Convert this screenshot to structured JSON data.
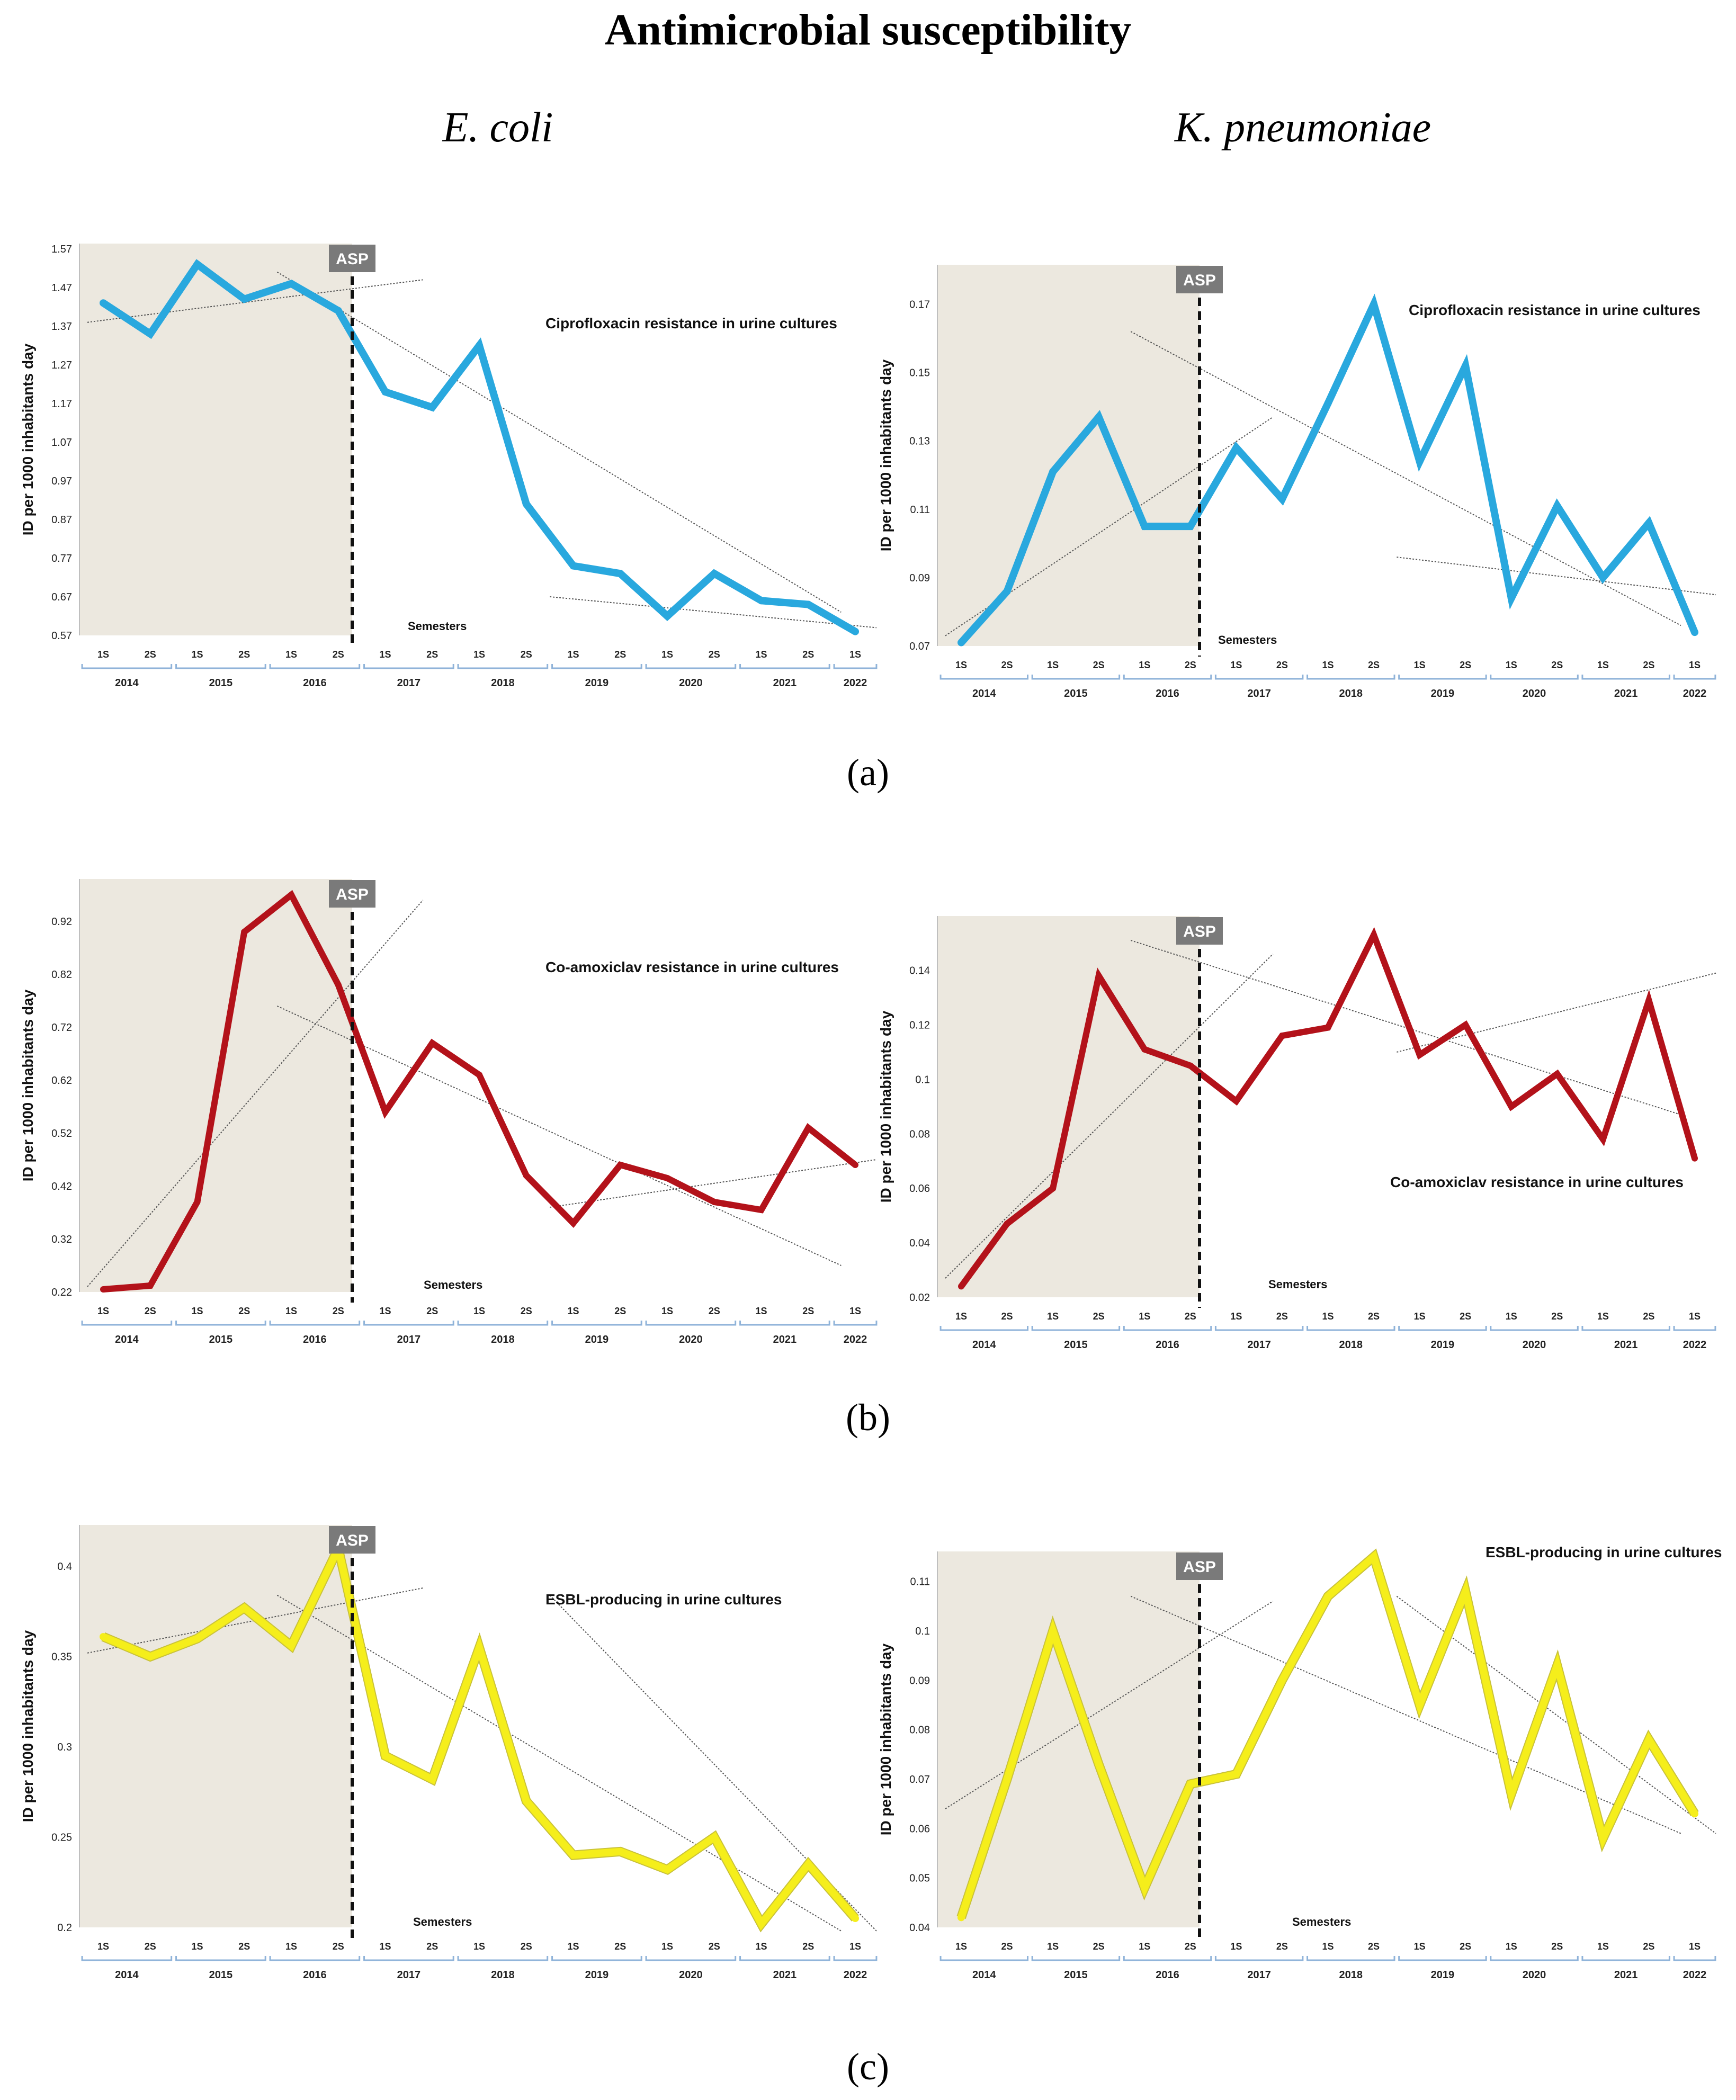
{
  "title": "Antimicrobial susceptibility",
  "columns": {
    "left": "E. coli",
    "right": "K. pneumoniae"
  },
  "panels": [
    "(a)",
    "(b)",
    "(c)"
  ],
  "colors": {
    "blue": "#29a8de",
    "red": "#b3121a",
    "yellow": "#f5ee1b",
    "shade": "#ece8df",
    "asp_box": "#7a7a7a"
  },
  "chart_data": [
    {
      "type": "line",
      "organism": "E. coli",
      "title": "Ciprofloxacin resistance in urine cultures",
      "ylabel": "ID per 1000 inhabitants  day",
      "xlabel": "Semesters",
      "marker_label": "ASP",
      "color": "blue",
      "yticks": [
        "0.57",
        "0.67",
        "0.77",
        "0.87",
        "0.97",
        "1.07",
        "1.17",
        "1.27",
        "1.37",
        "1.47",
        "1.57"
      ],
      "ylim": [
        0.57,
        1.57
      ],
      "x": [
        "1S",
        "2S",
        "1S",
        "2S",
        "1S",
        "2S",
        "1S",
        "2S",
        "1S",
        "2S",
        "1S",
        "2S",
        "1S",
        "2S",
        "1S",
        "2S",
        "1S"
      ],
      "years": [
        "2014",
        "2015",
        "2016",
        "2017",
        "2018",
        "2019",
        "2020",
        "2021",
        "2022"
      ],
      "values": [
        1.43,
        1.35,
        1.53,
        1.44,
        1.48,
        1.41,
        1.2,
        1.16,
        1.32,
        0.91,
        0.75,
        0.73,
        0.62,
        0.73,
        0.66,
        0.65,
        0.58
      ],
      "trend_pre": [
        1.38,
        1.49
      ],
      "trend_post": [
        1.51,
        0.63
      ],
      "trend_post_tail": [
        0.67,
        0.59
      ]
    },
    {
      "type": "line",
      "organism": "K. pneumoniae",
      "title": "Ciprofloxacin resistance in urine cultures",
      "ylabel": "ID per 1000 inhabitants day",
      "xlabel": "Semesters",
      "marker_label": "ASP",
      "color": "blue",
      "yticks": [
        "0.07",
        "0.09",
        "0.11",
        "0.13",
        "0.15",
        "0.17"
      ],
      "ylim": [
        0.07,
        0.18
      ],
      "x": [
        "1S",
        "2S",
        "1S",
        "2S",
        "1S",
        "2S",
        "1S",
        "2S",
        "1S",
        "2S",
        "1S",
        "2S",
        "1S",
        "2S",
        "1S",
        "2S",
        "1S"
      ],
      "years": [
        "2014",
        "2015",
        "2016",
        "2017",
        "2018",
        "2019",
        "2020",
        "2021",
        "2022"
      ],
      "values": [
        0.071,
        0.086,
        0.121,
        0.137,
        0.105,
        0.105,
        0.128,
        0.113,
        0.141,
        0.17,
        0.124,
        0.152,
        0.084,
        0.111,
        0.09,
        0.106,
        0.074
      ],
      "trend_pre": [
        0.073,
        0.137
      ],
      "trend_post": [
        0.162,
        0.076
      ],
      "trend_post_tail": [
        0.096,
        0.085
      ]
    },
    {
      "type": "line",
      "organism": "E. coli",
      "title": "Co-amoxiclav  resistance in urine cultures",
      "ylabel": "ID per 1000 inhabitants  day",
      "xlabel": "Semesters",
      "marker_label": "ASP",
      "color": "red",
      "yticks": [
        "0.22",
        "0.32",
        "0.42",
        "0.52",
        "0.62",
        "0.72",
        "0.82",
        "0.92"
      ],
      "ylim": [
        0.22,
        0.99
      ],
      "x": [
        "1S",
        "2S",
        "1S",
        "2S",
        "1S",
        "2S",
        "1S",
        "2S",
        "1S",
        "2S",
        "1S",
        "2S",
        "1S",
        "2S",
        "1S",
        "2S",
        "1S"
      ],
      "years": [
        "2014",
        "2015",
        "2016",
        "2017",
        "2018",
        "2019",
        "2020",
        "2021",
        "2022"
      ],
      "values": [
        0.225,
        0.232,
        0.39,
        0.9,
        0.97,
        0.8,
        0.56,
        0.69,
        0.63,
        0.44,
        0.35,
        0.46,
        0.435,
        0.39,
        0.375,
        0.53,
        0.46
      ],
      "trend_pre": [
        0.23,
        0.96
      ],
      "trend_post": [
        0.76,
        0.27
      ],
      "trend_post_tail": [
        0.38,
        0.47
      ]
    },
    {
      "type": "line",
      "organism": "K. pneumoniae",
      "title": "Co-amoxiclav resistance in urine cultures",
      "ylabel": "ID per 1000 inhabitants day",
      "xlabel": "Semesters",
      "marker_label": "ASP",
      "color": "red",
      "yticks": [
        "0.02",
        "0.04",
        "0.06",
        "0.08",
        "0.1",
        "0.12",
        "0.14"
      ],
      "ylim": [
        0.02,
        0.158
      ],
      "x": [
        "1S",
        "2S",
        "1S",
        "2S",
        "1S",
        "2S",
        "1S",
        "2S",
        "1S",
        "2S",
        "1S",
        "2S",
        "1S",
        "2S",
        "1S",
        "2S",
        "1S"
      ],
      "years": [
        "2014",
        "2015",
        "2016",
        "2017",
        "2018",
        "2019",
        "2020",
        "2021",
        "2022"
      ],
      "values": [
        0.024,
        0.047,
        0.06,
        0.138,
        0.111,
        0.105,
        0.092,
        0.116,
        0.119,
        0.153,
        0.109,
        0.12,
        0.09,
        0.102,
        0.078,
        0.129,
        0.071
      ],
      "trend_pre": [
        0.027,
        0.146
      ],
      "trend_post": [
        0.151,
        0.087
      ],
      "trend_post_tail": [
        0.11,
        0.139
      ]
    },
    {
      "type": "line",
      "organism": "E. coli",
      "title": "ESBL-producing in urine cultures",
      "ylabel": "ID per 1000 inhabitants  day",
      "xlabel": "Semesters",
      "marker_label": "ASP",
      "color": "yellow",
      "yticks": [
        "0.2",
        "0.25",
        "0.3",
        "0.35",
        "0.4"
      ],
      "ylim": [
        0.2,
        0.42
      ],
      "x": [
        "1S",
        "2S",
        "1S",
        "2S",
        "1S",
        "2S",
        "1S",
        "2S",
        "1S",
        "2S",
        "1S",
        "2S",
        "1S",
        "2S",
        "1S",
        "2S",
        "1S"
      ],
      "years": [
        "2014",
        "2015",
        "2016",
        "2017",
        "2018",
        "2019",
        "2020",
        "2021",
        "2022"
      ],
      "values": [
        0.361,
        0.35,
        0.36,
        0.377,
        0.356,
        0.41,
        0.295,
        0.282,
        0.355,
        0.27,
        0.24,
        0.242,
        0.232,
        0.25,
        0.202,
        0.235,
        0.205
      ],
      "trend_pre": [
        0.352,
        0.388
      ],
      "trend_post": [
        0.384,
        0.198
      ],
      "trend_post_tail": [
        0.384,
        0.198
      ]
    },
    {
      "type": "line",
      "organism": "K. pneumoniae",
      "title": "ESBL-producing in urine cultures",
      "ylabel": "ID per 1000 inhabitants day",
      "xlabel": "Semesters",
      "marker_label": "ASP",
      "color": "yellow",
      "yticks": [
        "0.04",
        "0.05",
        "0.06",
        "0.07",
        "0.08",
        "0.09",
        "0.1",
        "0.11"
      ],
      "ylim": [
        0.04,
        0.115
      ],
      "x": [
        "1S",
        "2S",
        "1S",
        "2S",
        "1S",
        "2S",
        "1S",
        "2S",
        "1S",
        "2S",
        "1S",
        "2S",
        "1S",
        "2S",
        "1S",
        "2S",
        "1S"
      ],
      "years": [
        "2014",
        "2015",
        "2016",
        "2017",
        "2018",
        "2019",
        "2020",
        "2021",
        "2022"
      ],
      "values": [
        0.042,
        0.07,
        0.1,
        0.073,
        0.048,
        0.069,
        0.071,
        0.09,
        0.107,
        0.115,
        0.085,
        0.108,
        0.067,
        0.093,
        0.058,
        0.078,
        0.063
      ],
      "trend_pre": [
        0.064,
        0.106
      ],
      "trend_post": [
        0.107,
        0.059
      ],
      "trend_post_tail": [
        0.107,
        0.059
      ]
    }
  ]
}
